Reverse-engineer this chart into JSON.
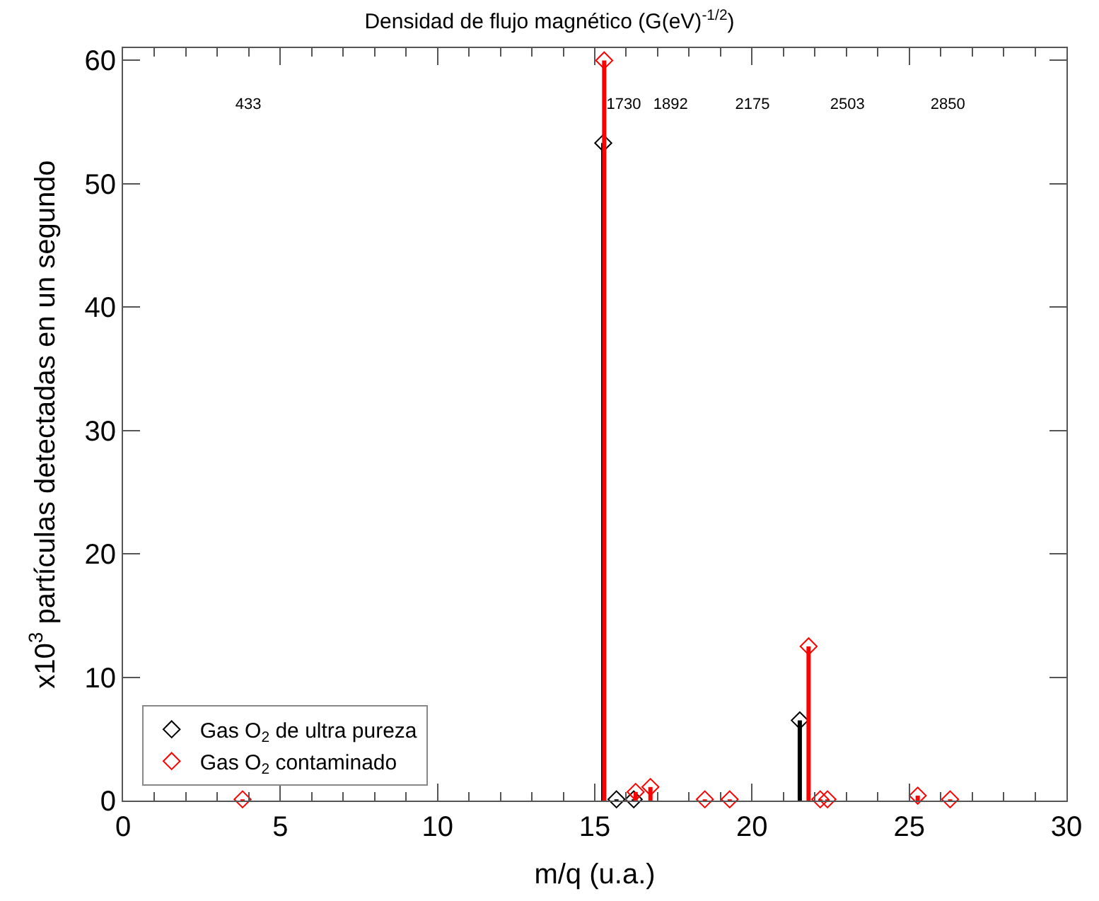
{
  "chart_data": {
    "type": "lollipop",
    "x2label": "Densidad de flujo magnético (G(eV)$^{-1/2}$)",
    "x2lim": [
      0,
      3260
    ],
    "xlabel": "m/q (u.a.)",
    "ylabel": "x10$^{3}$ partículas detectadas en un segundo",
    "xlim": [
      0,
      30
    ],
    "xticks": [
      0,
      5,
      10,
      15,
      20,
      25,
      30
    ],
    "ylim": [
      0,
      61
    ],
    "yticks": [
      0,
      10,
      20,
      30,
      40,
      50,
      60
    ],
    "series": [
      {
        "name": "Gas O$_{2}$ de ultra pureza",
        "color": "#000000",
        "x": [
          15.27,
          15.69,
          16.24,
          21.52
        ],
        "values": [
          53.3,
          0.1,
          0.1,
          6.5
        ]
      },
      {
        "name": "Gas O$_{2}$ contaminado",
        "color": "#ff0000",
        "x": [
          3.8,
          15.3,
          16.3,
          16.77,
          18.5,
          19.29,
          21.8,
          22.17,
          22.4,
          25.27,
          26.3
        ],
        "values": [
          0.1,
          60.0,
          0.7,
          1.1,
          0.1,
          0.1,
          12.5,
          0.1,
          0.1,
          0.4,
          0.1
        ]
      }
    ],
    "x2ticks": [
      433,
      1730,
      1892,
      2175,
      2503,
      2850
    ],
    "legend": "bottom left",
    "marker": "diamond",
    "grid": false
  }
}
